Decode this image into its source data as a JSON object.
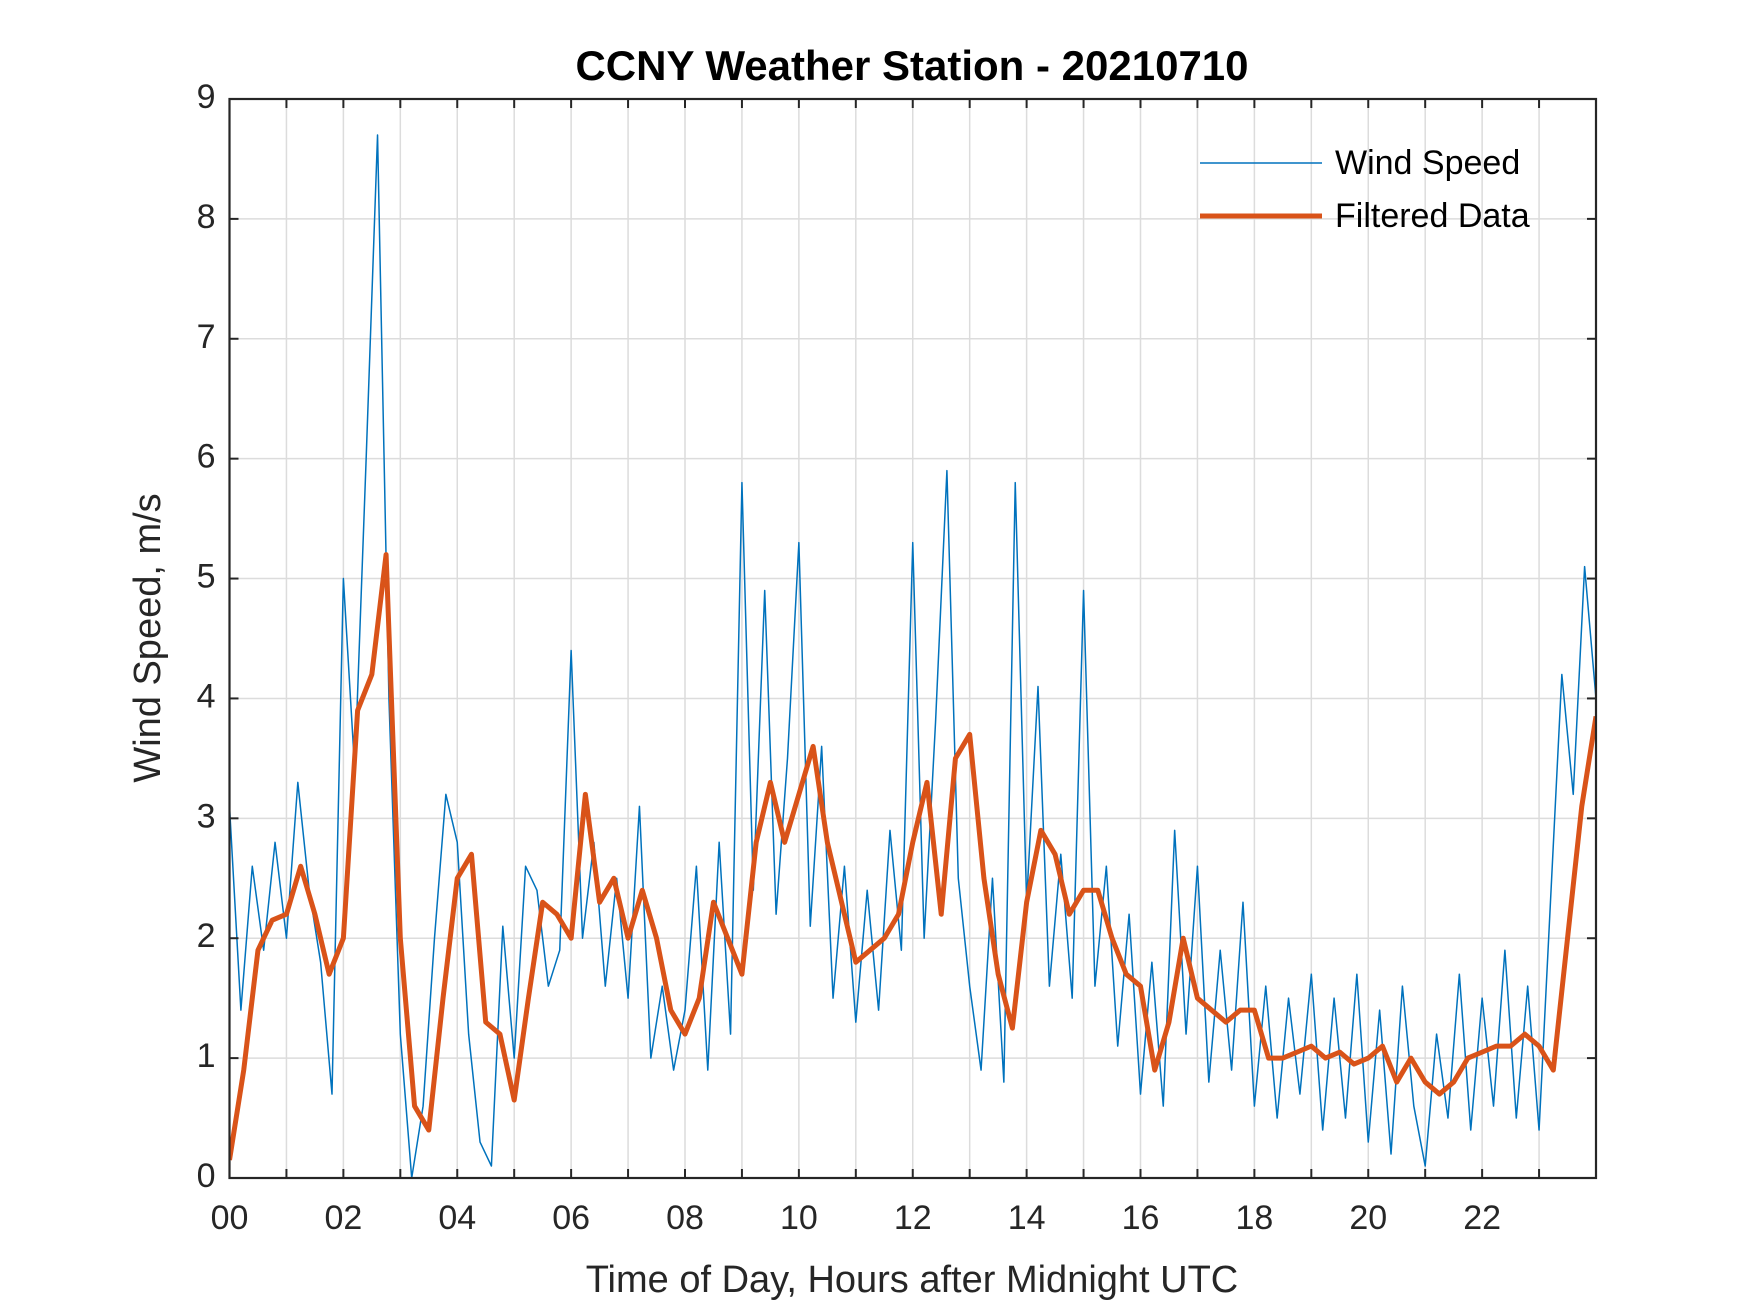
{
  "chart_data": {
    "type": "line",
    "title": "CCNY Weather Station - 20210710",
    "xlabel": "Time of Day, Hours after Midnight UTC",
    "ylabel": "Wind Speed, m/s",
    "xlim": [
      0,
      24
    ],
    "ylim": [
      0,
      9
    ],
    "xticks": [
      {
        "value": 0,
        "label": "00"
      },
      {
        "value": 2,
        "label": "02"
      },
      {
        "value": 4,
        "label": "04"
      },
      {
        "value": 6,
        "label": "06"
      },
      {
        "value": 8,
        "label": "08"
      },
      {
        "value": 10,
        "label": "10"
      },
      {
        "value": 12,
        "label": "12"
      },
      {
        "value": 14,
        "label": "14"
      },
      {
        "value": 16,
        "label": "16"
      },
      {
        "value": 18,
        "label": "18"
      },
      {
        "value": 20,
        "label": "20"
      },
      {
        "value": 22,
        "label": "22"
      }
    ],
    "xminorticks": [
      1,
      3,
      5,
      7,
      9,
      11,
      13,
      15,
      17,
      19,
      21,
      23
    ],
    "yticks": [
      0,
      1,
      2,
      3,
      4,
      5,
      6,
      7,
      8,
      9
    ],
    "grid": true,
    "legend": "northeast",
    "series": [
      {
        "name": "Wind Speed",
        "color": "#0072BD",
        "width": 1.5,
        "x": [
          0,
          0.2,
          0.4,
          0.6,
          0.8,
          1,
          1.2,
          1.4,
          1.6,
          1.8,
          2,
          2.2,
          2.4,
          2.6,
          2.8,
          3,
          3.2,
          3.4,
          3.6,
          3.8,
          4,
          4.2,
          4.4,
          4.6,
          4.8,
          5,
          5.2,
          5.4,
          5.6,
          5.8,
          6,
          6.2,
          6.4,
          6.6,
          6.8,
          7,
          7.2,
          7.4,
          7.6,
          7.8,
          8,
          8.2,
          8.4,
          8.6,
          8.8,
          9,
          9.2,
          9.4,
          9.6,
          9.8,
          10,
          10.2,
          10.4,
          10.6,
          10.8,
          11,
          11.2,
          11.4,
          11.6,
          11.8,
          12,
          12.2,
          12.4,
          12.6,
          12.8,
          13,
          13.2,
          13.4,
          13.6,
          13.8,
          14,
          14.2,
          14.4,
          14.6,
          14.8,
          15,
          15.2,
          15.4,
          15.6,
          15.8,
          16,
          16.2,
          16.4,
          16.6,
          16.8,
          17,
          17.2,
          17.4,
          17.6,
          17.8,
          18,
          18.2,
          18.4,
          18.6,
          18.8,
          19,
          19.2,
          19.4,
          19.6,
          19.8,
          20,
          20.2,
          20.4,
          20.6,
          20.8,
          21,
          21.2,
          21.4,
          21.6,
          21.8,
          22,
          22.2,
          22.4,
          22.6,
          22.8,
          23,
          23.2,
          23.4,
          23.6,
          23.8,
          24
        ],
        "values": [
          3.1,
          1.4,
          2.6,
          1.9,
          2.8,
          2.0,
          3.3,
          2.4,
          1.8,
          0.7,
          5.0,
          3.4,
          6.0,
          8.7,
          4.0,
          1.2,
          0.0,
          0.6,
          2.0,
          3.2,
          2.8,
          1.2,
          0.3,
          0.1,
          2.1,
          1.0,
          2.6,
          2.4,
          1.6,
          1.9,
          4.4,
          2.0,
          2.8,
          1.6,
          2.5,
          1.5,
          3.1,
          1.0,
          1.6,
          0.9,
          1.4,
          2.6,
          0.9,
          2.8,
          1.2,
          5.8,
          2.4,
          4.9,
          2.2,
          3.5,
          5.3,
          2.1,
          3.6,
          1.5,
          2.6,
          1.3,
          2.4,
          1.4,
          2.9,
          1.9,
          5.3,
          2.0,
          3.8,
          5.9,
          2.5,
          1.6,
          0.9,
          2.5,
          0.8,
          5.8,
          2.3,
          4.1,
          1.6,
          2.7,
          1.5,
          4.9,
          1.6,
          2.6,
          1.1,
          2.2,
          0.7,
          1.8,
          0.6,
          2.9,
          1.2,
          2.6,
          0.8,
          1.9,
          0.9,
          2.3,
          0.6,
          1.6,
          0.5,
          1.5,
          0.7,
          1.7,
          0.4,
          1.5,
          0.5,
          1.7,
          0.3,
          1.4,
          0.2,
          1.6,
          0.6,
          0.1,
          1.2,
          0.5,
          1.7,
          0.4,
          1.5,
          0.6,
          1.9,
          0.5,
          1.6,
          0.4,
          2.3,
          4.2,
          3.2,
          5.1,
          4.0
        ]
      },
      {
        "name": "Filtered Data",
        "color": "#D95319",
        "width": 5,
        "x": [
          0,
          0.25,
          0.5,
          0.75,
          1,
          1.25,
          1.5,
          1.75,
          2,
          2.25,
          2.5,
          2.75,
          3,
          3.25,
          3.5,
          3.75,
          4,
          4.25,
          4.5,
          4.75,
          5,
          5.25,
          5.5,
          5.75,
          6,
          6.25,
          6.5,
          6.75,
          7,
          7.25,
          7.5,
          7.75,
          8,
          8.25,
          8.5,
          8.75,
          9,
          9.25,
          9.5,
          9.75,
          10,
          10.25,
          10.5,
          10.75,
          11,
          11.25,
          11.5,
          11.75,
          12,
          12.25,
          12.5,
          12.75,
          13,
          13.25,
          13.5,
          13.75,
          14,
          14.25,
          14.5,
          14.75,
          15,
          15.25,
          15.5,
          15.75,
          16,
          16.25,
          16.5,
          16.75,
          17,
          17.25,
          17.5,
          17.75,
          18,
          18.25,
          18.5,
          18.75,
          19,
          19.25,
          19.5,
          19.75,
          20,
          20.25,
          20.5,
          20.75,
          21,
          21.25,
          21.5,
          21.75,
          22,
          22.25,
          22.5,
          22.75,
          23,
          23.25,
          23.5,
          23.75,
          24
        ],
        "values": [
          0.15,
          0.9,
          1.9,
          2.15,
          2.2,
          2.6,
          2.2,
          1.7,
          2.0,
          3.9,
          4.2,
          5.2,
          2.0,
          0.6,
          0.4,
          1.5,
          2.5,
          2.7,
          1.3,
          1.2,
          0.65,
          1.5,
          2.3,
          2.2,
          2.0,
          3.2,
          2.3,
          2.5,
          2.0,
          2.4,
          2.0,
          1.4,
          1.2,
          1.5,
          2.3,
          2.0,
          1.7,
          2.8,
          3.3,
          2.8,
          3.2,
          3.6,
          2.8,
          2.3,
          1.8,
          1.9,
          2.0,
          2.2,
          2.8,
          3.3,
          2.2,
          3.5,
          3.7,
          2.5,
          1.7,
          1.25,
          2.3,
          2.9,
          2.7,
          2.2,
          2.4,
          2.4,
          2.0,
          1.7,
          1.6,
          0.9,
          1.3,
          2.0,
          1.5,
          1.4,
          1.3,
          1.4,
          1.4,
          1.0,
          1.0,
          1.05,
          1.1,
          1.0,
          1.05,
          0.95,
          1.0,
          1.1,
          0.8,
          1.0,
          0.8,
          0.7,
          0.8,
          1.0,
          1.05,
          1.1,
          1.1,
          1.2,
          1.1,
          0.9,
          2.0,
          3.1,
          3.85
        ]
      }
    ]
  }
}
